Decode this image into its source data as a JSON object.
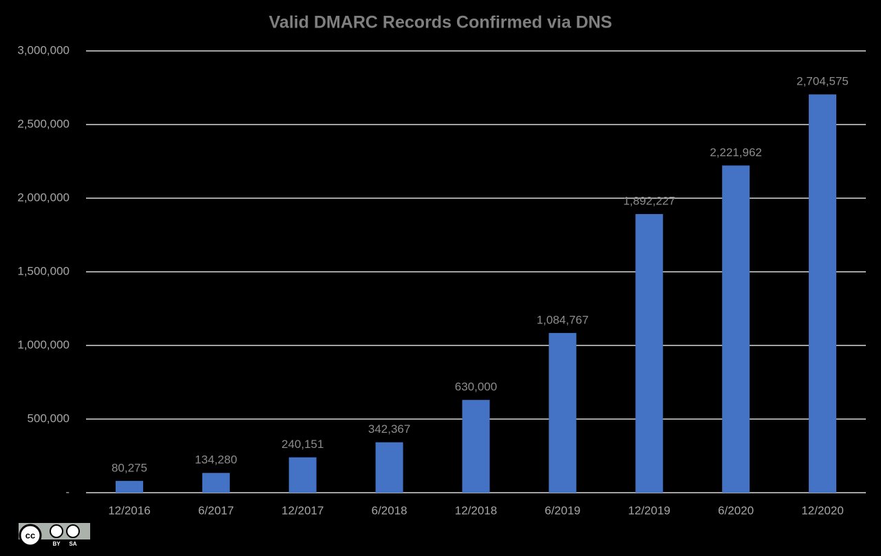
{
  "chart_data": {
    "type": "bar",
    "title": "Valid DMARC Records Confirmed via DNS",
    "categories": [
      "12/2016",
      "6/2017",
      "12/2017",
      "6/2018",
      "12/2018",
      "6/2019",
      "12/2019",
      "6/2020",
      "12/2020"
    ],
    "values": [
      80275,
      134280,
      240151,
      342367,
      630000,
      1084767,
      1892227,
      2221962,
      2704575
    ],
    "value_labels": [
      "80,275",
      "134,280",
      "240,151",
      "342,367",
      "630,000",
      "1,084,767",
      "1,892,227",
      "2,221,962",
      "2,704,575"
    ],
    "color": "#4472c4",
    "ylim": [
      0,
      3000000
    ],
    "yticks": [
      {
        "value": 0,
        "label": "-"
      },
      {
        "value": 500000,
        "label": "500,000"
      },
      {
        "value": 1000000,
        "label": "1,000,000"
      },
      {
        "value": 1500000,
        "label": "1,500,000"
      },
      {
        "value": 2000000,
        "label": "2,000,000"
      },
      {
        "value": 2500000,
        "label": "2,500,000"
      },
      {
        "value": 3000000,
        "label": "3,000,000"
      }
    ],
    "grid": true
  },
  "license": {
    "icon": "cc",
    "by": "BY",
    "sa": "SA"
  }
}
